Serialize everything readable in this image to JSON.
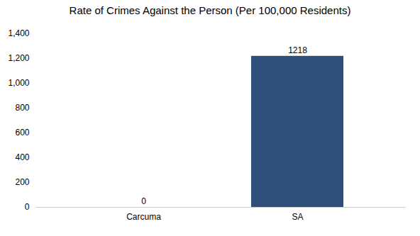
{
  "chart_data": {
    "type": "bar",
    "title": "Rate of Crimes Against the Person (Per 100,000 Residents)",
    "categories": [
      "Carcuma",
      "SA"
    ],
    "values": [
      0,
      1218
    ],
    "color": "#2e4f7a",
    "ylim": [
      0,
      1400
    ],
    "yticks": [
      0,
      200,
      400,
      600,
      800,
      1000,
      1200,
      1400
    ],
    "grid": false,
    "data_labels": true
  }
}
